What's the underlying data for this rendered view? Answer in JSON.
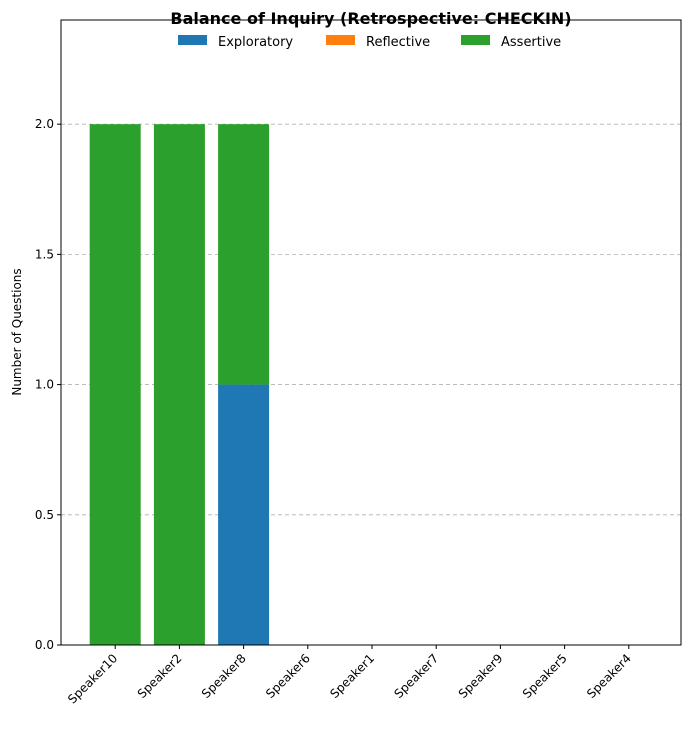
{
  "chart_data": {
    "type": "bar",
    "stacked": true,
    "title": "Balance of Inquiry (Retrospective: CHECKIN)",
    "xlabel": "",
    "ylabel": "Number of Questions",
    "categories": [
      "Speaker10",
      "Speaker2",
      "Speaker8",
      "Speaker6",
      "Speaker1",
      "Speaker7",
      "Speaker9",
      "Speaker5",
      "Speaker4"
    ],
    "series": [
      {
        "name": "Exploratory",
        "color": "#1f77b4",
        "values": [
          0,
          0,
          1,
          0,
          0,
          0,
          0,
          0,
          0
        ]
      },
      {
        "name": "Reflective",
        "color": "#ff7f0e",
        "values": [
          0,
          0,
          0,
          0,
          0,
          0,
          0,
          0,
          0
        ]
      },
      {
        "name": "Assertive",
        "color": "#2ca02c",
        "values": [
          2,
          2,
          1,
          0,
          0,
          0,
          0,
          0,
          0
        ]
      }
    ],
    "ylim": [
      0,
      2.4
    ],
    "yticks": [
      0.0,
      0.5,
      1.0,
      1.5,
      2.0
    ],
    "ytick_labels": [
      "0.0",
      "0.5",
      "1.0",
      "1.5",
      "2.0"
    ],
    "grid": "y-dashed",
    "legend_position": "top-center"
  }
}
